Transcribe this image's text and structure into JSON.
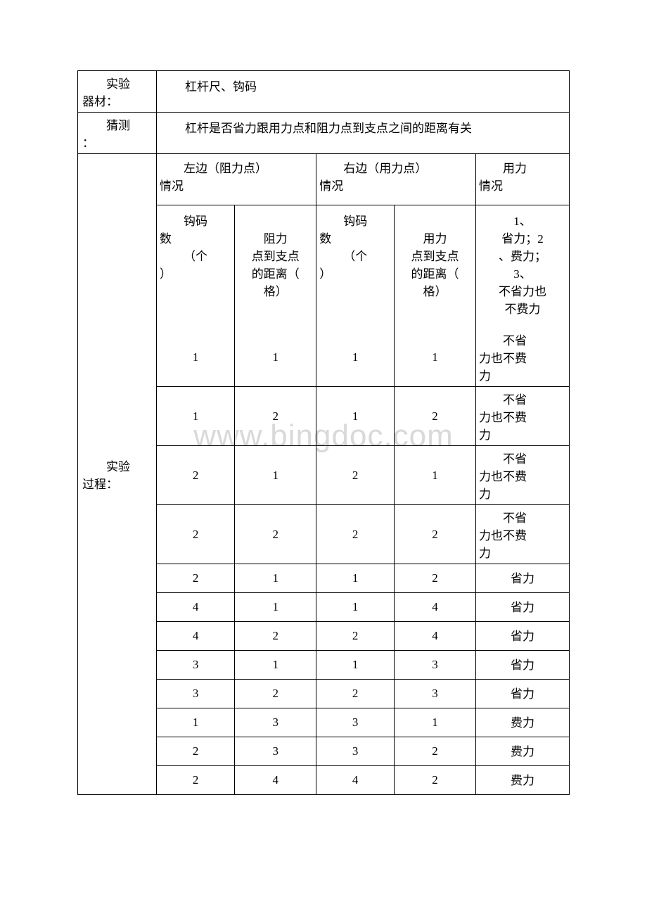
{
  "watermark": "www.bingdoc.com",
  "labels": {
    "equipment_label_a": "实验",
    "equipment_label_b": "器材：",
    "guess_label_a": "猜测",
    "guess_label_b": "：",
    "process_label_a": "实验",
    "process_label_b": "过程："
  },
  "equipment_text": "杠杆尺、钩码",
  "guess_text": "杠杆是否省力跟用力点和阻力点到支点之间的距离有关",
  "headers": {
    "left_hdr_a": "左边（阻力点）",
    "left_hdr_b": "情况",
    "right_hdr_a": "右边（用力点）",
    "right_hdr_b": "情况",
    "result_hdr_a": "用力",
    "result_hdr_b": "情况",
    "sub_weight_a": "钩码",
    "sub_weight_b": "数",
    "sub_weight_c": "（个",
    "sub_weight_d": "）",
    "sub_resist_a": "阻力",
    "sub_resist_b": "点到支点",
    "sub_resist_c": "的距离（",
    "sub_resist_d": "格）",
    "sub_force_a": "用力",
    "sub_force_b": "点到支点",
    "sub_force_c": "的距离（",
    "sub_force_d": "格）",
    "result_opt_a": "1、",
    "result_opt_b": "省力；2",
    "result_opt_c": "、费力；",
    "result_opt_d": "3、",
    "result_opt_e": "不省力也",
    "result_opt_f": "不费力"
  },
  "rows": [
    {
      "lw": "1",
      "ld": "1",
      "rw": "1",
      "rd": "1",
      "res_a": "不省",
      "res_b": "力也不费",
      "res_c": "力",
      "tall": true
    },
    {
      "lw": "1",
      "ld": "2",
      "rw": "1",
      "rd": "2",
      "res_a": "不省",
      "res_b": "力也不费",
      "res_c": "力",
      "tall": true
    },
    {
      "lw": "2",
      "ld": "1",
      "rw": "2",
      "rd": "1",
      "res_a": "不省",
      "res_b": "力也不费",
      "res_c": "力",
      "tall": true
    },
    {
      "lw": "2",
      "ld": "2",
      "rw": "2",
      "rd": "2",
      "res_a": "不省",
      "res_b": "力也不费",
      "res_c": "力",
      "tall": true
    },
    {
      "lw": "2",
      "ld": "1",
      "rw": "1",
      "rd": "2",
      "res": "省力",
      "tall": false
    },
    {
      "lw": "4",
      "ld": "1",
      "rw": "1",
      "rd": "4",
      "res": "省力",
      "tall": false
    },
    {
      "lw": "4",
      "ld": "2",
      "rw": "2",
      "rd": "4",
      "res": "省力",
      "tall": false
    },
    {
      "lw": "3",
      "ld": "1",
      "rw": "1",
      "rd": "3",
      "res": "省力",
      "tall": false
    },
    {
      "lw": "3",
      "ld": "2",
      "rw": "2",
      "rd": "3",
      "res": "省力",
      "tall": false
    },
    {
      "lw": "1",
      "ld": "3",
      "rw": "3",
      "rd": "1",
      "res": "费力",
      "tall": false
    },
    {
      "lw": "2",
      "ld": "3",
      "rw": "3",
      "rd": "2",
      "res": "费力",
      "tall": false
    },
    {
      "lw": "2",
      "ld": "4",
      "rw": "4",
      "rd": "2",
      "res": "费力",
      "tall": false
    }
  ]
}
